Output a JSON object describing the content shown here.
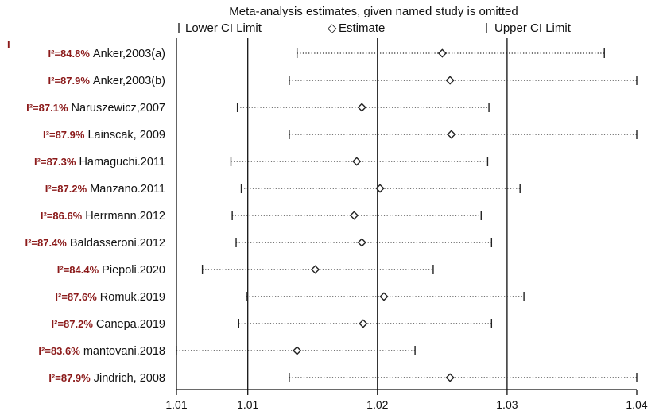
{
  "chart_data": {
    "type": "forest",
    "title": "Meta-analysis estimates, given named study is omitted",
    "legend": {
      "lower": "Lower CI Limit",
      "estimate": "Estimate",
      "upper": "Upper CI Limit",
      "estimate_symbol": "◇",
      "placement": "top"
    },
    "xlim": [
      1.0045,
      1.04
    ],
    "x_ticks": [
      {
        "value": 1.0045,
        "label": "1.01"
      },
      {
        "value": 1.01,
        "label": "1.01"
      },
      {
        "value": 1.02,
        "label": "1.02"
      },
      {
        "value": 1.03,
        "label": "1.03"
      },
      {
        "value": 1.04,
        "label": "1.04"
      }
    ],
    "reference_lines": [
      1.01,
      1.02,
      1.03
    ],
    "extra_marks": [
      "I"
    ],
    "studies": [
      {
        "name": "Anker,2003(a)",
        "i2": "I²=84.8%",
        "lower": 1.0138,
        "estimate": 1.025,
        "upper": 1.0375
      },
      {
        "name": "Anker,2003(b)",
        "i2": "I²=87.9%",
        "lower": 1.0132,
        "estimate": 1.0256,
        "upper": 1.04
      },
      {
        "name": "Naruszewicz,2007",
        "i2": "I²=87.1%",
        "lower": 1.0092,
        "estimate": 1.0188,
        "upper": 1.0286
      },
      {
        "name": "Lainscak, 2009",
        "i2": "I²=87.9%",
        "lower": 1.0132,
        "estimate": 1.0257,
        "upper": 1.04
      },
      {
        "name": "Hamaguchi.2011",
        "i2": "I²=87.3%",
        "lower": 1.0087,
        "estimate": 1.0184,
        "upper": 1.0285
      },
      {
        "name": "Manzano.2011",
        "i2": "I²=87.2%",
        "lower": 1.0095,
        "estimate": 1.0202,
        "upper": 1.031
      },
      {
        "name": "Herrmann.2012",
        "i2": "I²=86.6%",
        "lower": 1.0088,
        "estimate": 1.0182,
        "upper": 1.028
      },
      {
        "name": "Baldasseroni.2012",
        "i2": "I²=87.4%",
        "lower": 1.0091,
        "estimate": 1.0188,
        "upper": 1.0288
      },
      {
        "name": "Piepoli.2020",
        "i2": "I²=84.4%",
        "lower": 1.0065,
        "estimate": 1.0152,
        "upper": 1.0243
      },
      {
        "name": "Romuk.2019",
        "i2": "I²=87.6%",
        "lower": 1.0099,
        "estimate": 1.0205,
        "upper": 1.0313
      },
      {
        "name": "Canepa.2019",
        "i2": "I²=87.2%",
        "lower": 1.0093,
        "estimate": 1.0189,
        "upper": 1.0288
      },
      {
        "name": "mantovani.2018",
        "i2": "I²=83.6%",
        "lower": 1.0045,
        "estimate": 1.0138,
        "upper": 1.0229
      },
      {
        "name": "Jindrich, 2008",
        "i2": "I²=87.9%",
        "lower": 1.0132,
        "estimate": 1.0256,
        "upper": 1.04
      }
    ]
  }
}
